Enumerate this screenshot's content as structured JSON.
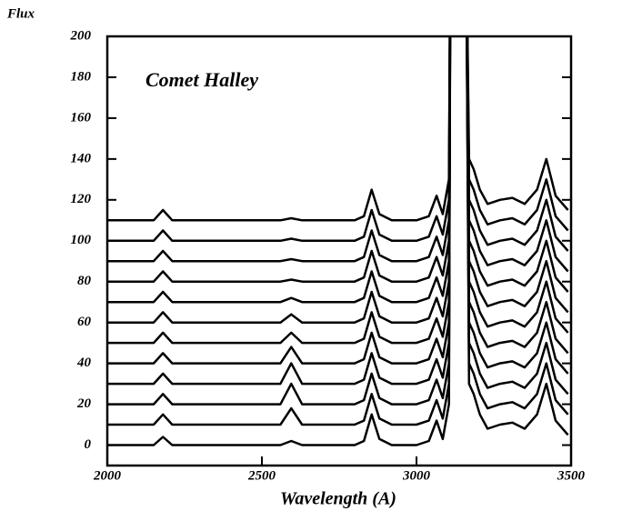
{
  "chart_data": {
    "type": "line",
    "title": "Comet Halley",
    "ylabel": "Flux",
    "xlabel": "Wavelength (A)",
    "x": [
      2000,
      2100,
      2150,
      2180,
      2210,
      2250,
      2400,
      2500,
      2560,
      2595,
      2630,
      2700,
      2800,
      2830,
      2855,
      2880,
      2920,
      3000,
      3040,
      3065,
      3085,
      3105,
      3110,
      3160,
      3170,
      3185,
      3205,
      3230,
      3270,
      3310,
      3350,
      3390,
      3420,
      3450,
      3490
    ],
    "xlim": [
      2000,
      3500
    ],
    "xticks": [
      2000,
      2500,
      3000,
      3500
    ],
    "ylim": [
      -10,
      200
    ],
    "yticks": [
      0,
      20,
      40,
      60,
      80,
      100,
      120,
      140,
      160,
      180,
      200
    ],
    "color": "#000000",
    "series": [
      {
        "values": [
          0,
          0,
          0,
          4,
          0,
          0,
          0,
          0,
          0,
          2,
          0,
          0,
          0,
          2,
          15,
          3,
          0,
          0,
          2,
          12,
          3,
          20,
          260,
          260,
          30,
          25,
          15,
          8,
          10,
          11,
          8,
          15,
          30,
          12,
          5
        ]
      },
      {
        "values": [
          10,
          10,
          10,
          15,
          10,
          10,
          10,
          10,
          10,
          18,
          10,
          10,
          10,
          12,
          25,
          13,
          10,
          10,
          12,
          22,
          13,
          30,
          260,
          260,
          40,
          35,
          25,
          18,
          20,
          21,
          18,
          25,
          40,
          22,
          15
        ]
      },
      {
        "values": [
          20,
          20,
          20,
          25,
          20,
          20,
          20,
          20,
          20,
          30,
          20,
          20,
          20,
          22,
          35,
          23,
          20,
          20,
          22,
          32,
          23,
          40,
          260,
          260,
          50,
          45,
          35,
          28,
          30,
          31,
          28,
          35,
          50,
          32,
          25
        ]
      },
      {
        "values": [
          30,
          30,
          30,
          35,
          30,
          30,
          30,
          30,
          30,
          40,
          30,
          30,
          30,
          32,
          45,
          33,
          30,
          30,
          32,
          42,
          33,
          50,
          260,
          260,
          60,
          55,
          45,
          38,
          40,
          41,
          38,
          45,
          60,
          42,
          35
        ]
      },
      {
        "values": [
          40,
          40,
          40,
          45,
          40,
          40,
          40,
          40,
          40,
          48,
          40,
          40,
          40,
          42,
          55,
          43,
          40,
          40,
          42,
          52,
          43,
          60,
          260,
          260,
          70,
          65,
          55,
          48,
          50,
          51,
          48,
          55,
          70,
          52,
          45
        ]
      },
      {
        "values": [
          50,
          50,
          50,
          55,
          50,
          50,
          50,
          50,
          50,
          55,
          50,
          50,
          50,
          52,
          65,
          53,
          50,
          50,
          52,
          62,
          53,
          70,
          260,
          260,
          80,
          75,
          65,
          58,
          60,
          61,
          58,
          65,
          80,
          62,
          55
        ]
      },
      {
        "values": [
          60,
          60,
          60,
          65,
          60,
          60,
          60,
          60,
          60,
          64,
          60,
          60,
          60,
          62,
          75,
          63,
          60,
          60,
          62,
          72,
          63,
          80,
          260,
          260,
          90,
          85,
          75,
          68,
          70,
          71,
          68,
          75,
          90,
          72,
          65
        ]
      },
      {
        "values": [
          70,
          70,
          70,
          75,
          70,
          70,
          70,
          70,
          70,
          72,
          70,
          70,
          70,
          72,
          85,
          73,
          70,
          70,
          72,
          82,
          73,
          90,
          260,
          260,
          100,
          95,
          85,
          78,
          80,
          81,
          78,
          85,
          100,
          82,
          75
        ]
      },
      {
        "values": [
          80,
          80,
          80,
          85,
          80,
          80,
          80,
          80,
          80,
          81,
          80,
          80,
          80,
          82,
          95,
          83,
          80,
          80,
          82,
          92,
          83,
          100,
          260,
          260,
          110,
          105,
          95,
          88,
          90,
          91,
          88,
          95,
          110,
          92,
          85
        ]
      },
      {
        "values": [
          90,
          90,
          90,
          95,
          90,
          90,
          90,
          90,
          90,
          91,
          90,
          90,
          90,
          92,
          105,
          93,
          90,
          90,
          92,
          102,
          93,
          110,
          260,
          260,
          120,
          115,
          105,
          98,
          100,
          101,
          98,
          105,
          120,
          102,
          95
        ]
      },
      {
        "values": [
          100,
          100,
          100,
          105,
          100,
          100,
          100,
          100,
          100,
          101,
          100,
          100,
          100,
          102,
          115,
          103,
          100,
          100,
          102,
          112,
          103,
          120,
          260,
          260,
          130,
          125,
          115,
          108,
          110,
          111,
          108,
          115,
          130,
          112,
          105
        ]
      },
      {
        "values": [
          110,
          110,
          110,
          115,
          110,
          110,
          110,
          110,
          110,
          111,
          110,
          110,
          110,
          112,
          125,
          113,
          110,
          110,
          112,
          122,
          113,
          130,
          260,
          260,
          140,
          135,
          125,
          118,
          120,
          121,
          118,
          125,
          140,
          122,
          115
        ]
      }
    ]
  }
}
